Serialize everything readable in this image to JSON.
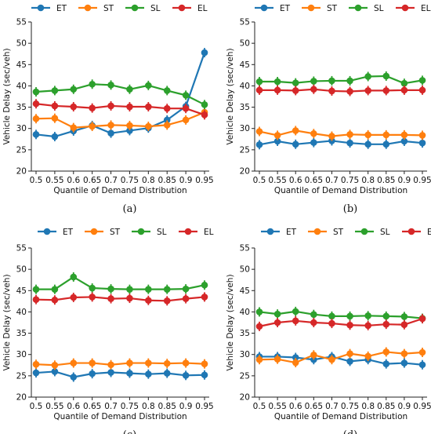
{
  "colors": {
    "ET": "#1f77b4",
    "ST": "#ff7f0e",
    "SL": "#2ca02c",
    "EL": "#d62728",
    "axis": "#222222"
  },
  "chart_data": [
    {
      "type": "line",
      "panel_label": "(a)",
      "x": [
        "0.5",
        "0.55",
        "0.6",
        "0.65",
        "0.7",
        "0.75",
        "0.8",
        "0.85",
        "0.9",
        "0.95"
      ],
      "xlabel": "Quantile of Demand Distribution",
      "ylabel": "Vehicle Delay (sec/veh)",
      "ylim": [
        20,
        55
      ],
      "yticks": [
        20,
        25,
        30,
        35,
        40,
        45,
        50,
        55
      ],
      "legend": "top",
      "series": [
        {
          "name": "ET",
          "values": [
            28.6,
            28.1,
            29.4,
            30.7,
            28.9,
            29.5,
            30.1,
            32.0,
            35.2,
            47.8
          ]
        },
        {
          "name": "ST",
          "values": [
            32.3,
            32.4,
            30.2,
            30.5,
            30.8,
            30.7,
            30.5,
            30.8,
            32.0,
            33.8
          ]
        },
        {
          "name": "SL",
          "values": [
            38.6,
            38.9,
            39.2,
            40.4,
            40.2,
            39.2,
            40.1,
            38.9,
            37.8,
            35.6
          ]
        },
        {
          "name": "EL",
          "values": [
            35.8,
            35.3,
            35.1,
            34.8,
            35.3,
            35.1,
            35.1,
            34.7,
            34.7,
            33.2
          ]
        }
      ]
    },
    {
      "type": "line",
      "panel_label": "(b)",
      "x": [
        "0.5",
        "0.55",
        "0.6",
        "0.65",
        "0.7",
        "0.75",
        "0.8",
        "0.85",
        "0.9",
        "0.95"
      ],
      "xlabel": "Quantile of Demand Distribution",
      "ylabel": "Vehicle Delay (sec/veh)",
      "ylim": [
        20,
        55
      ],
      "yticks": [
        20,
        25,
        30,
        35,
        40,
        45,
        50,
        55
      ],
      "legend": "top",
      "series": [
        {
          "name": "ET",
          "values": [
            26.2,
            27.0,
            26.3,
            26.7,
            27.1,
            26.6,
            26.3,
            26.3,
            27.0,
            26.6
          ]
        },
        {
          "name": "ST",
          "values": [
            29.3,
            28.4,
            29.5,
            28.8,
            28.2,
            28.6,
            28.5,
            28.5,
            28.5,
            28.4
          ]
        },
        {
          "name": "SL",
          "values": [
            41.0,
            41.0,
            40.7,
            41.1,
            41.2,
            41.2,
            42.2,
            42.3,
            40.6,
            41.3
          ]
        },
        {
          "name": "EL",
          "values": [
            39.0,
            39.0,
            38.9,
            39.2,
            38.8,
            38.7,
            38.9,
            38.9,
            39.0,
            39.0
          ]
        }
      ]
    },
    {
      "type": "line",
      "panel_label": "(c)",
      "x": [
        "0.5",
        "0.55",
        "0.6",
        "0.65",
        "0.7",
        "0.75",
        "0.8",
        "0.85",
        "0.9",
        "0.95"
      ],
      "xlabel": "Quantile of Demand Distribution",
      "ylabel": "Vehicle Delay (sec/veh)",
      "ylim": [
        20,
        55
      ],
      "yticks": [
        20,
        25,
        30,
        35,
        40,
        45,
        50,
        55
      ],
      "legend": "top",
      "series": [
        {
          "name": "ET",
          "values": [
            25.7,
            26.0,
            24.7,
            25.5,
            25.8,
            25.6,
            25.4,
            25.6,
            25.1,
            25.2
          ]
        },
        {
          "name": "ST",
          "values": [
            27.7,
            27.5,
            28.0,
            28.0,
            27.6,
            28.0,
            28.0,
            27.9,
            28.0,
            27.8
          ]
        },
        {
          "name": "SL",
          "values": [
            45.3,
            45.3,
            48.2,
            45.6,
            45.4,
            45.3,
            45.3,
            45.3,
            45.4,
            46.3
          ]
        },
        {
          "name": "EL",
          "values": [
            42.9,
            42.8,
            43.4,
            43.5,
            43.1,
            43.2,
            42.7,
            42.6,
            43.1,
            43.5
          ]
        }
      ]
    },
    {
      "type": "line",
      "panel_label": "(d)",
      "x": [
        "0.5",
        "0.55",
        "0.6",
        "0.65",
        "0.7",
        "0.75",
        "0.8",
        "0.85",
        "0.9",
        "0.95"
      ],
      "xlabel": "Quantile of Demand Distribution",
      "ylabel": "Vehicle Delay (sec/veh)",
      "ylim": [
        20,
        55
      ],
      "yticks": [
        20,
        25,
        30,
        35,
        40,
        45,
        50,
        55
      ],
      "legend": "top",
      "series": [
        {
          "name": "ET",
          "values": [
            29.5,
            29.5,
            29.3,
            28.8,
            29.5,
            28.4,
            28.8,
            27.8,
            28.0,
            27.6
          ]
        },
        {
          "name": "ST",
          "values": [
            28.8,
            28.9,
            28.1,
            29.9,
            28.8,
            30.2,
            29.6,
            30.6,
            30.2,
            30.5
          ]
        },
        {
          "name": "SL",
          "values": [
            40.0,
            39.5,
            40.1,
            39.4,
            39.0,
            39.0,
            39.1,
            39.0,
            38.9,
            38.5
          ]
        },
        {
          "name": "EL",
          "values": [
            36.6,
            37.5,
            37.9,
            37.5,
            37.3,
            36.9,
            36.8,
            37.1,
            37.0,
            38.4
          ]
        }
      ]
    }
  ]
}
